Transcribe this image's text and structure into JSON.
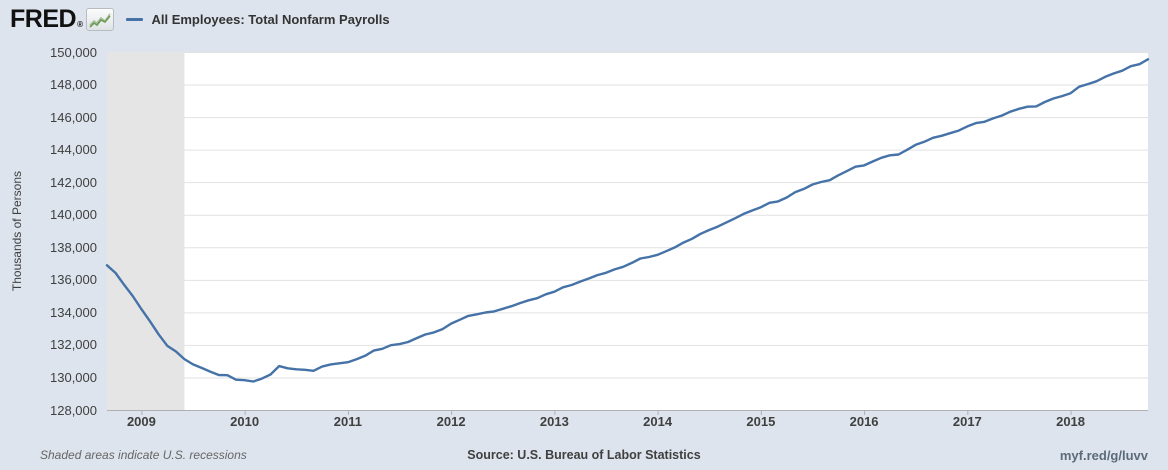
{
  "header": {
    "logo_text": "FRED",
    "registered_mark": "®",
    "legend_label": "All Employees: Total Nonfarm Payrolls"
  },
  "chart_data": {
    "type": "line",
    "title": "All Employees: Total Nonfarm Payrolls",
    "ylabel": "Thousands of Persons",
    "frequency": "monthly",
    "x_range": [
      "2008-09",
      "2018-10"
    ],
    "ylim": [
      128000,
      150000
    ],
    "ytick_values": [
      150000,
      148000,
      146000,
      144000,
      142000,
      140000,
      138000,
      136000,
      134000,
      132000,
      130000,
      128000
    ],
    "ytick_labels": [
      "150,000",
      "148,000",
      "146,000",
      "144,000",
      "142,000",
      "140,000",
      "138,000",
      "136,000",
      "134,000",
      "132,000",
      "130,000",
      "128,000"
    ],
    "xticks": [
      {
        "label": "2009",
        "month_index": 4
      },
      {
        "label": "2010",
        "month_index": 16
      },
      {
        "label": "2011",
        "month_index": 28
      },
      {
        "label": "2012",
        "month_index": 40
      },
      {
        "label": "2013",
        "month_index": 52
      },
      {
        "label": "2014",
        "month_index": 64
      },
      {
        "label": "2015",
        "month_index": 76
      },
      {
        "label": "2016",
        "month_index": 88
      },
      {
        "label": "2017",
        "month_index": 100
      },
      {
        "label": "2018",
        "month_index": 112
      }
    ],
    "recession_band": {
      "start_index": 0,
      "end_index": 9,
      "meaning": "U.S. recession shading ending June 2009"
    },
    "legend_position": "top",
    "grid": "horizontal",
    "series": [
      {
        "name": "All Employees: Total Nonfarm Payrolls",
        "color": "#4572a7",
        "values": [
          136890,
          136420,
          135690,
          135000,
          134200,
          133450,
          132650,
          131950,
          131600,
          131130,
          130800,
          130590,
          130360,
          130150,
          130140,
          129860,
          129830,
          129750,
          129930,
          130180,
          130700,
          130560,
          130500,
          130470,
          130410,
          130670,
          130800,
          130870,
          130940,
          131120,
          131330,
          131650,
          131760,
          131980,
          132050,
          132180,
          132420,
          132640,
          132770,
          132970,
          133310,
          133540,
          133780,
          133880,
          133990,
          134060,
          134220,
          134380,
          134570,
          134740,
          134870,
          135110,
          135270,
          135540,
          135680,
          135890,
          136080,
          136290,
          136430,
          136640,
          136800,
          137040,
          137310,
          137400,
          137540,
          137760,
          137990,
          138290,
          138520,
          138830,
          139060,
          139270,
          139530,
          139780,
          140050,
          140260,
          140460,
          140730,
          140820,
          141060,
          141390,
          141590,
          141860,
          142010,
          142120,
          142420,
          142680,
          142950,
          143030,
          143270,
          143500,
          143650,
          143700,
          143990,
          144300,
          144480,
          144730,
          144850,
          145010,
          145170,
          145430,
          145630,
          145710,
          145920,
          146090,
          146330,
          146510,
          146640,
          146660,
          146930,
          147140,
          147290,
          147470,
          147870,
          148030,
          148200,
          148470,
          148680,
          148850,
          149130,
          149250,
          149550
        ]
      }
    ]
  },
  "footer": {
    "recession_note": "Shaded areas indicate U.S. recessions",
    "source": "Source: U.S. Bureau of Labor Statistics",
    "link": "myf.red/g/luvv"
  },
  "colors": {
    "background": "#dde4ed",
    "plot_background": "#ffffff",
    "recession_band": "#e5e5e5",
    "gridline": "#e2e2e2",
    "axis": "#b0b0b0",
    "line": "#4572a7",
    "icon_line_dark": "#6a9b52",
    "icon_line_light": "#a9bfa0"
  }
}
